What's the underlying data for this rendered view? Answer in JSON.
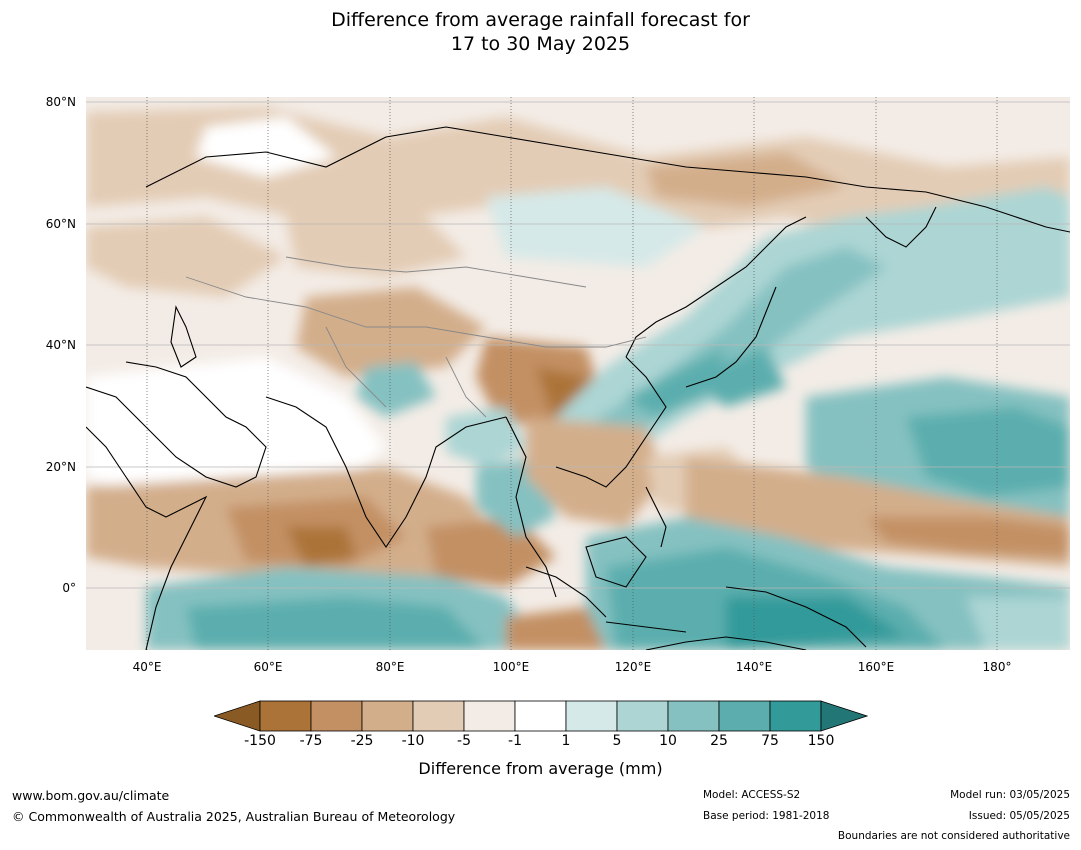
{
  "title": {
    "line1": "Difference from average rainfall forecast for",
    "line2": "17 to 30 May 2025"
  },
  "map": {
    "region": "Asia, Western Pacific and northern Indian Ocean",
    "lat_labels": [
      "80°N",
      "60°N",
      "40°N",
      "20°N",
      "0°"
    ],
    "lon_labels": [
      "40°E",
      "60°E",
      "80°E",
      "100°E",
      "120°E",
      "140°E",
      "160°E",
      "180°"
    ],
    "extent": {
      "lon": [
        30,
        192
      ],
      "lat": [
        -10,
        81
      ]
    },
    "gridlines": true
  },
  "colorbar": {
    "title": "Difference from average (mm)",
    "ticks": [
      "-150",
      "-75",
      "-25",
      "-10",
      "-5",
      "-1",
      "1",
      "5",
      "10",
      "25",
      "75",
      "150"
    ],
    "colors": [
      "#8a5a24",
      "#ac7339",
      "#c39064",
      "#d3ae8b",
      "#e3ccb5",
      "#f3ece6",
      "#ffffff",
      "#d5e9e8",
      "#acd5d4",
      "#85c1c1",
      "#5caeae",
      "#339a9a",
      "#237676"
    ]
  },
  "footer": {
    "website": "www.bom.gov.au/climate",
    "copyright": "© Commonwealth of Australia 2025, Australian Bureau of Meteorology",
    "model": "Model: ACCESS-S2",
    "base_period": "Base period: 1981-2018",
    "model_run": "Model run: 03/05/2025",
    "issued": "Issued: 05/05/2025",
    "disclaimer": "Boundaries are not considered authoritative"
  }
}
